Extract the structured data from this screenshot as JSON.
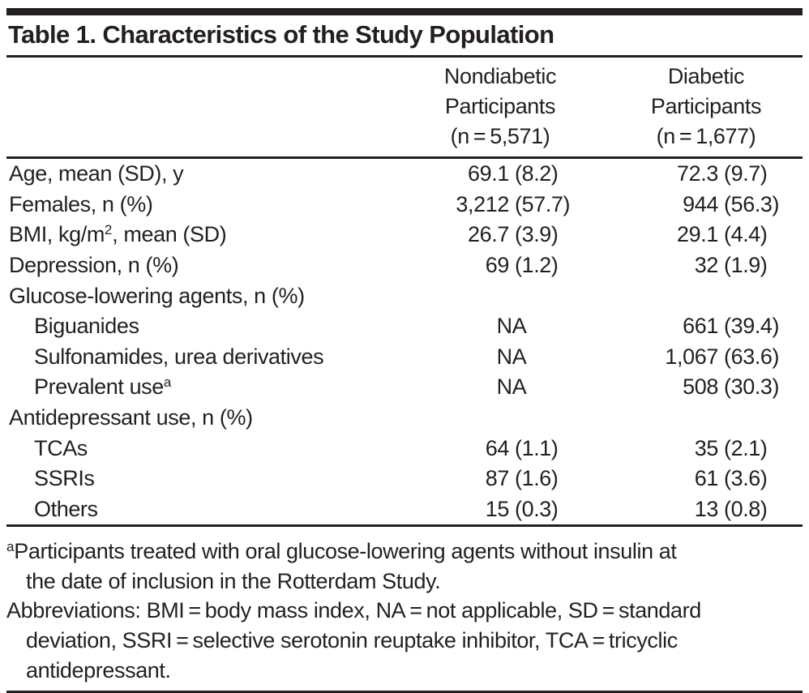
{
  "title": "Table 1. Characteristics of the Study Population",
  "table": {
    "columns": [
      {
        "line1": "Nondiabetic",
        "line2": "Participants",
        "line3": "(n = 5,571)"
      },
      {
        "line1": "Diabetic",
        "line2": "Participants",
        "line3": "(n = 1,677)"
      }
    ],
    "rows": [
      {
        "label_pre": "Age, mean (SD), y",
        "indent": false,
        "nd": {
          "num": "69.1",
          "paren": "(8.2)"
        },
        "db": {
          "num": "72.3",
          "paren": "(9.7)"
        }
      },
      {
        "label_pre": "Females, n (%)",
        "indent": false,
        "nd": {
          "num": "3,212",
          "paren": "(57.7)"
        },
        "db": {
          "num": "944",
          "paren": "(56.3)"
        }
      },
      {
        "label_pre": "BMI, kg/m",
        "label_sup": "2",
        "label_post": ", mean (SD)",
        "indent": false,
        "nd": {
          "num": "26.7",
          "paren": "(3.9)"
        },
        "db": {
          "num": "29.1",
          "paren": "(4.4)"
        }
      },
      {
        "label_pre": "Depression, n (%)",
        "indent": false,
        "nd": {
          "num": "69",
          "paren": "(1.2)"
        },
        "db": {
          "num": "32",
          "paren": "(1.9)"
        }
      },
      {
        "label_pre": "Glucose-lowering agents, n (%)",
        "indent": false
      },
      {
        "label_pre": "Biguanides",
        "indent": true,
        "nd": {
          "na": "NA"
        },
        "db": {
          "num": "661",
          "paren": "(39.4)"
        }
      },
      {
        "label_pre": "Sulfonamides, urea derivatives",
        "indent": true,
        "nd": {
          "na": "NA"
        },
        "db": {
          "num": "1,067",
          "paren": "(63.6)"
        }
      },
      {
        "label_pre": "Prevalent use",
        "label_sup": "a",
        "indent": true,
        "nd": {
          "na": "NA"
        },
        "db": {
          "num": "508",
          "paren": "(30.3)"
        }
      },
      {
        "label_pre": "Antidepressant use, n (%)",
        "indent": false
      },
      {
        "label_pre": "TCAs",
        "indent": true,
        "nd": {
          "num": "64",
          "paren": "(1.1)"
        },
        "db": {
          "num": "35",
          "paren": "(2.1)"
        }
      },
      {
        "label_pre": "SSRIs",
        "indent": true,
        "nd": {
          "num": "87",
          "paren": "(1.6)"
        },
        "db": {
          "num": "61",
          "paren": "(3.6)"
        }
      },
      {
        "label_pre": "Others",
        "indent": true,
        "nd": {
          "num": "15",
          "paren": "(0.3)"
        },
        "db": {
          "num": "13",
          "paren": "(0.8)"
        }
      }
    ]
  },
  "footnotes": [
    {
      "sup": "a",
      "text": "Participants treated with oral glucose-lowering agents without insulin at\nthe date of inclusion in the Rotterdam Study."
    },
    {
      "sup": "",
      "text": "Abbreviations: BMI = body mass index, NA = not applicable, SD = standard\ndeviation, SSRI = selective serotonin reuptake inhibitor, TCA = tricyclic\nantidepressant."
    }
  ],
  "colors": {
    "text": "#231f20",
    "rule": "#231f20",
    "background": "#ffffff"
  }
}
